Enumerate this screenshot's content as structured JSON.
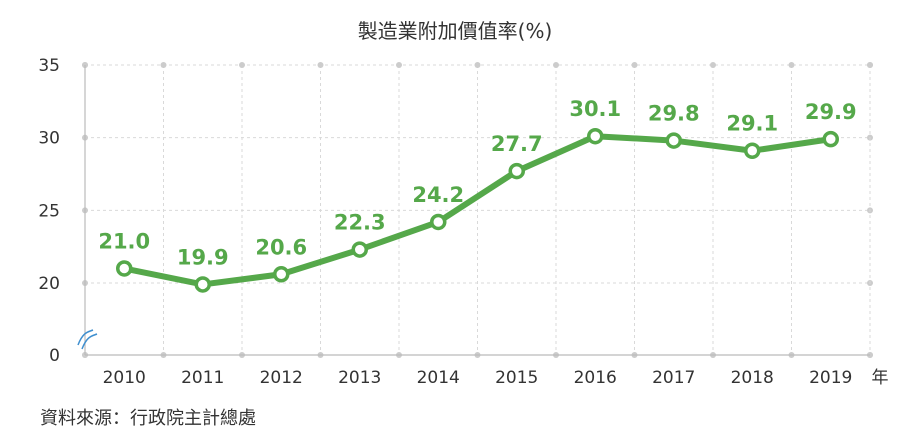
{
  "chart_data": {
    "type": "line",
    "title": "製造業附加價值率(%)",
    "x_unit_label": "年",
    "x": [
      "2010",
      "2011",
      "2012",
      "2013",
      "2014",
      "2015",
      "2016",
      "2017",
      "2018",
      "2019"
    ],
    "series": [
      {
        "values": [
          21.0,
          19.9,
          20.6,
          22.3,
          24.2,
          27.7,
          30.1,
          29.8,
          29.1,
          29.9
        ],
        "value_labels": [
          "21.0",
          "19.9",
          "20.6",
          "22.3",
          "24.2",
          "27.7",
          "30.1",
          "29.8",
          "29.1",
          "29.9"
        ],
        "color": "#55a84a"
      }
    ],
    "y_ticks": [
      "0",
      "20",
      "25",
      "30",
      "35"
    ],
    "y_axis_break": true,
    "grid": true,
    "legend": "none"
  },
  "source_text": "資料來源：行政院主計總處"
}
